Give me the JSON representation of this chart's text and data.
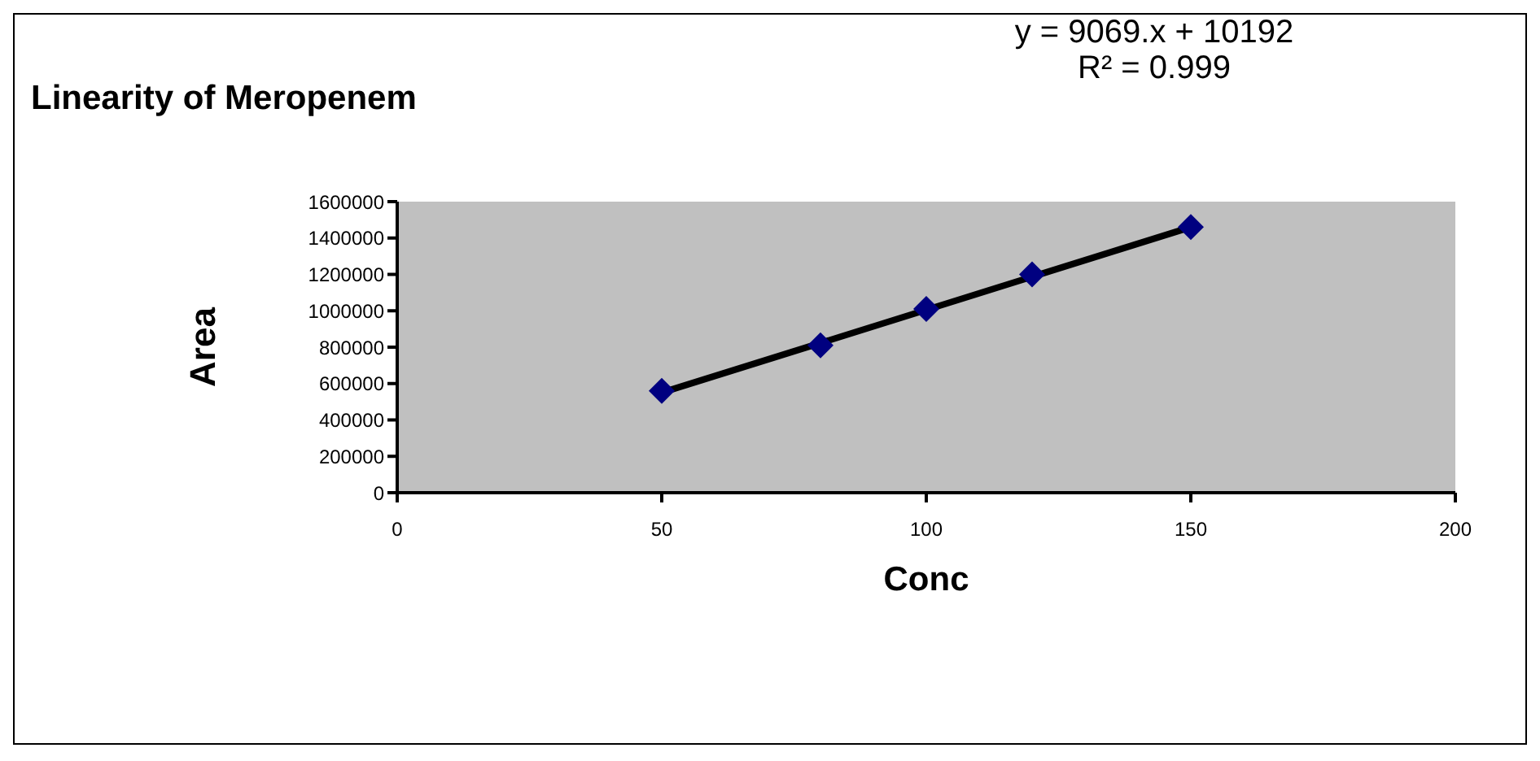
{
  "chart_data": {
    "type": "scatter",
    "title": "Linearity of  Meropenem",
    "xlabel": "Conc",
    "ylabel": "Area",
    "annotations": [
      "y = 9069.x  + 10192",
      "R² = 0.999"
    ],
    "xlim": [
      0,
      200
    ],
    "xticks": [
      0,
      50,
      100,
      150,
      200
    ],
    "ylim": [
      0,
      1600000
    ],
    "yticks": [
      0,
      200000,
      400000,
      600000,
      800000,
      1000000,
      1200000,
      1400000,
      1600000
    ],
    "grid": false,
    "legend": false,
    "series": [
      {
        "color": "#000080",
        "marker": "diamond",
        "x": [
          50,
          80,
          100,
          120,
          150
        ],
        "values": [
          560000,
          810000,
          1010000,
          1200000,
          1460000
        ]
      },
      {
        "type": "line",
        "color": "#000000",
        "marker": "none",
        "x": [
          50,
          150
        ],
        "values": [
          550000,
          1460000
        ]
      }
    ]
  }
}
